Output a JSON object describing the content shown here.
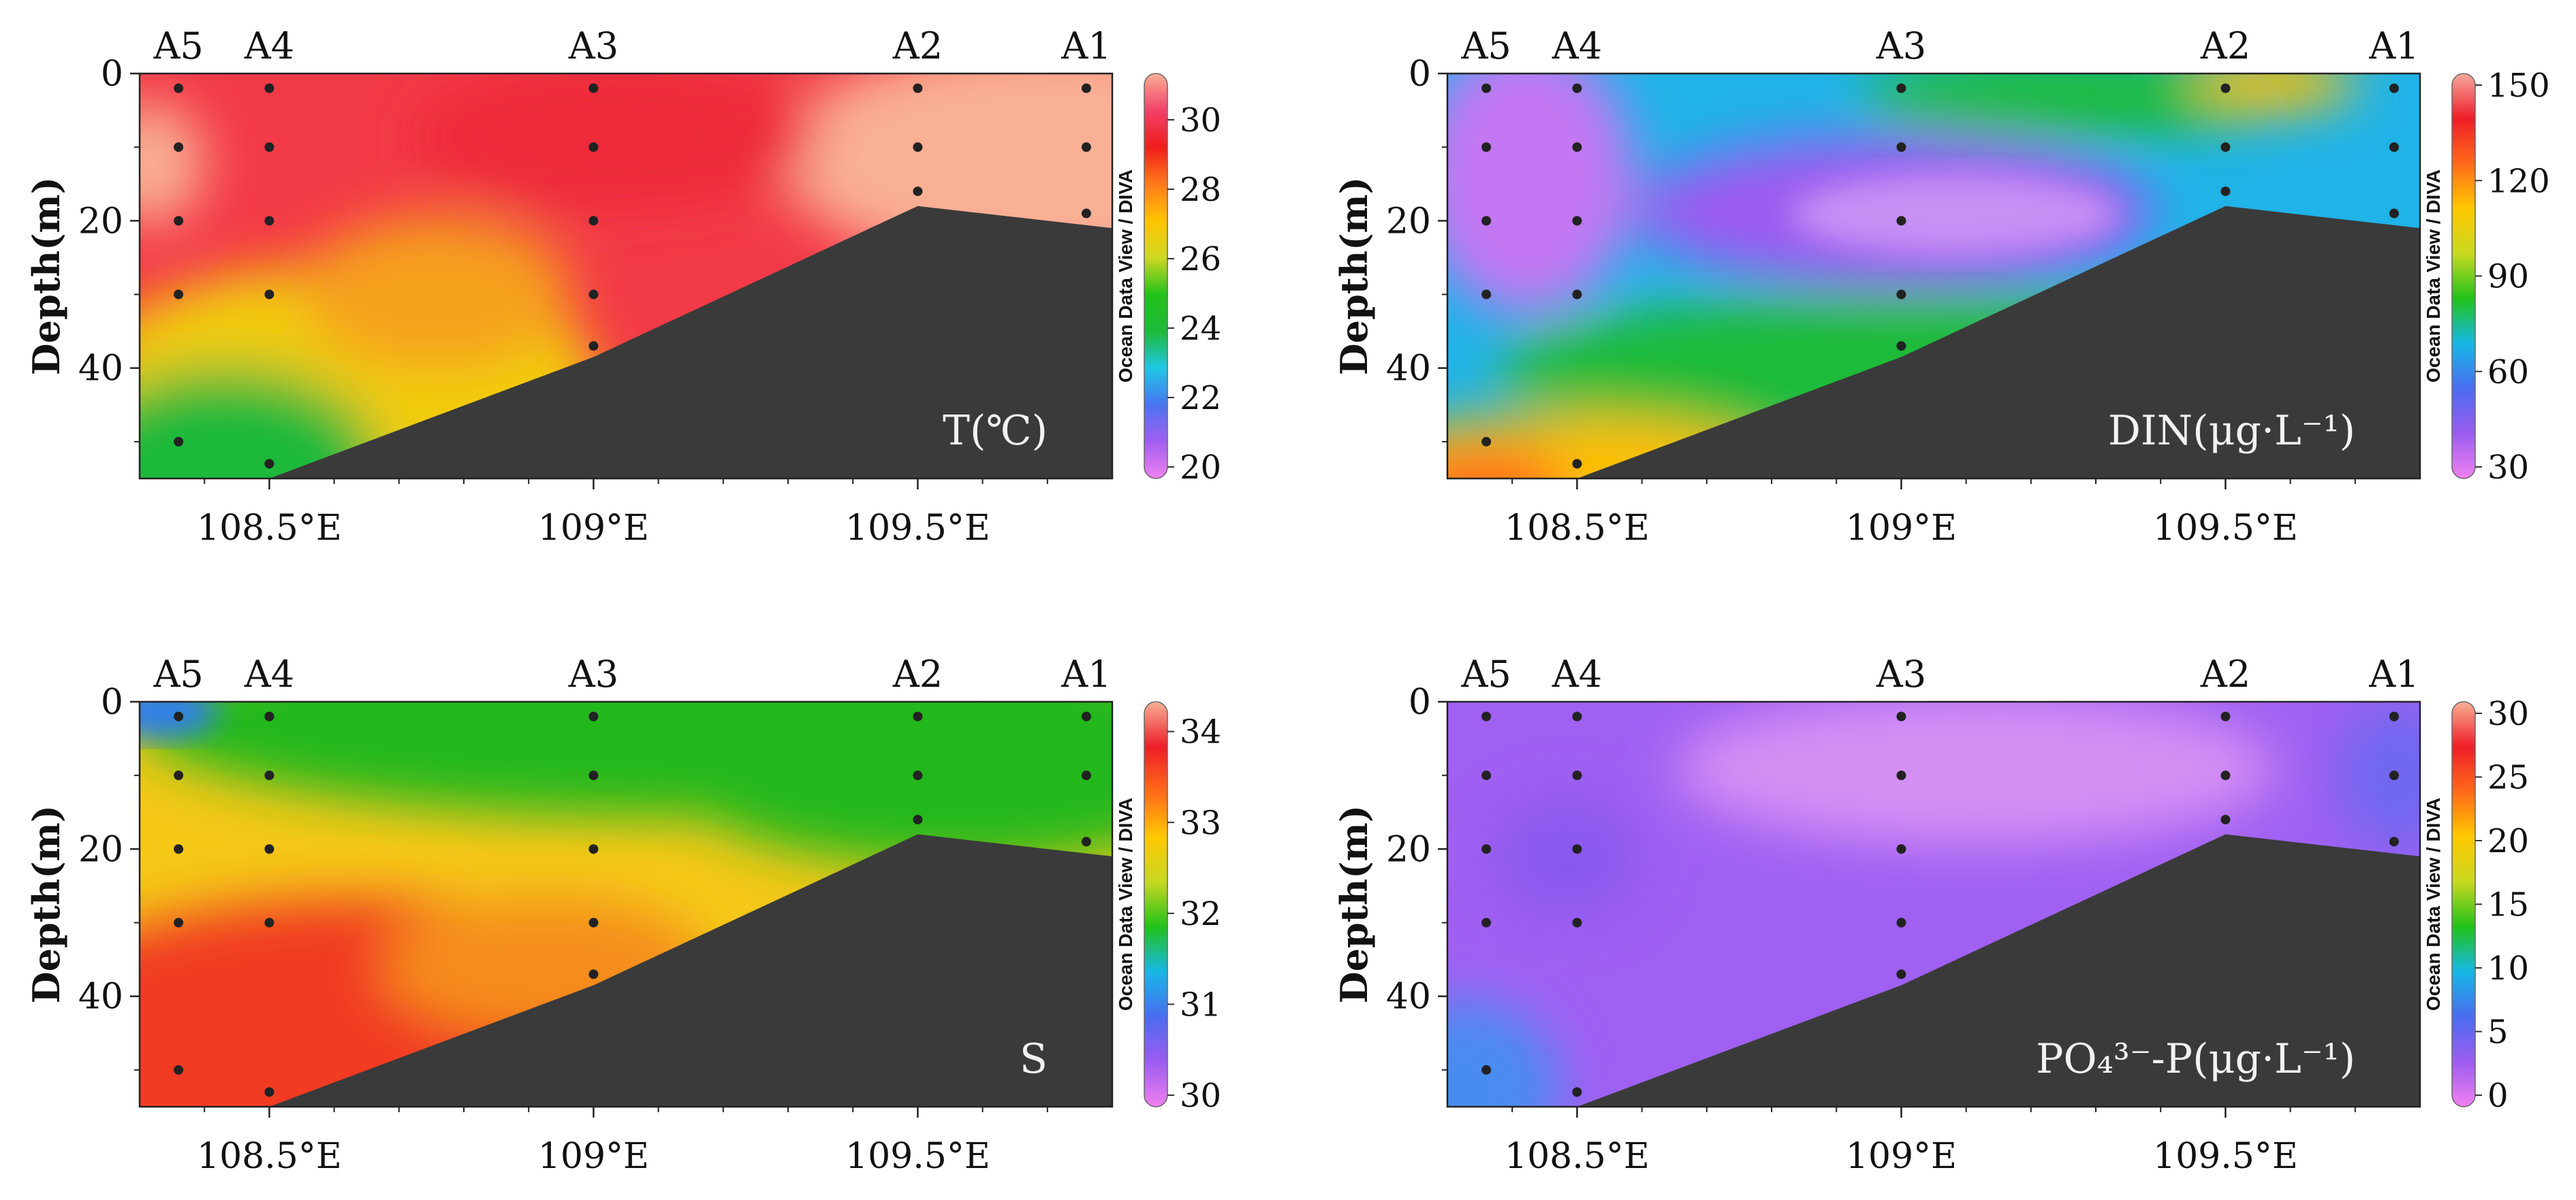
{
  "common": {
    "stations": [
      "A5",
      "A4",
      "A3",
      "A2",
      "A1"
    ],
    "station_lons": [
      108.36,
      108.5,
      109.0,
      109.5,
      109.76
    ],
    "x_ticks": [
      108.5,
      109.0,
      109.5
    ],
    "x_tick_labels": [
      "108.5°E",
      "109°E",
      "109.5°E"
    ],
    "x_range": [
      108.3,
      109.8
    ],
    "y_ticks": [
      0,
      20,
      40
    ],
    "y_tick_labels": [
      "0",
      "20",
      "40"
    ],
    "y_range": [
      0,
      55
    ],
    "ylabel": "Depth(m)",
    "colorbar_title": "Ocean Data View / DIVA",
    "sample_depths": [
      [
        2,
        10,
        20,
        30,
        50
      ],
      [
        2,
        10,
        20,
        30,
        53
      ],
      [
        2,
        10,
        20,
        30,
        37
      ],
      [
        2,
        10,
        16
      ],
      [
        2,
        10,
        19
      ]
    ],
    "seafloor": {
      "lon": [
        108.3,
        108.5,
        109.0,
        109.5,
        109.8
      ],
      "depth": [
        55,
        55,
        38.5,
        18,
        21
      ]
    },
    "seafloor_color": "#3a3a3a"
  },
  "chart_data": [
    {
      "type": "heatmap",
      "variable": "T",
      "label": "T(℃)",
      "colorbar_ticks": [
        "20",
        "22",
        "24",
        "26",
        "28",
        "30"
      ],
      "colorbar_range": [
        20,
        31
      ],
      "colorbar_colors": [
        "#ee80f0",
        "#a35ef0",
        "#4a74f0",
        "#1ec8e6",
        "#1dba38",
        "#22c21a",
        "#cfd822",
        "#ffc400",
        "#ff7a1a",
        "#ef1d1d",
        "#f3406a",
        "#f9b095"
      ],
      "sections": [
        {
          "name": "warm-surface-east",
          "value": 31,
          "color": "#f9b095"
        },
        {
          "name": "surface-layer",
          "value": 29.7,
          "color": "#f33a48"
        },
        {
          "name": "mid-depth-west",
          "value": 27.5,
          "color": "#f2cc10"
        },
        {
          "name": "bottom-west",
          "value": 25.5,
          "color": "#1eb93a"
        }
      ]
    },
    {
      "type": "heatmap",
      "variable": "DIN",
      "label": "DIN(μg·L⁻¹)",
      "colorbar_ticks": [
        "30",
        "60",
        "90",
        "120",
        "150"
      ],
      "colorbar_range": [
        30,
        150
      ],
      "colorbar_colors": [
        "#f080f0",
        "#9c5cf0",
        "#4a6cf0",
        "#16b8e6",
        "#22c21a",
        "#c8d820",
        "#ffc800",
        "#ff6a1a",
        "#ee1e28",
        "#f6a8a0"
      ],
      "sections": [
        {
          "name": "low-west-core",
          "value": 40,
          "color": "#b266f0"
        },
        {
          "name": "mid-core",
          "value": 45,
          "color": "#c477f2"
        },
        {
          "name": "surface-band",
          "value": 65,
          "color": "#1fb3e8"
        },
        {
          "name": "green-band",
          "value": 95,
          "color": "#1fbb38"
        },
        {
          "name": "bottom-high",
          "value": 130,
          "color": "#ffc000"
        }
      ]
    },
    {
      "type": "heatmap",
      "variable": "S",
      "label": "S",
      "colorbar_ticks": [
        "30",
        "31",
        "32",
        "33",
        "34"
      ],
      "colorbar_range": [
        30,
        34.2
      ],
      "colorbar_colors": [
        "#f080f0",
        "#9c5cf0",
        "#4a6cf0",
        "#16b8e6",
        "#22c21a",
        "#c8d820",
        "#ffc800",
        "#ff6a1a",
        "#ee1e28",
        "#f9b095"
      ],
      "sections": [
        {
          "name": "surface-layer",
          "value": 32.2,
          "color": "#24b81f"
        },
        {
          "name": "mid-layer",
          "value": 32.9,
          "color": "#f5c818"
        },
        {
          "name": "deep-layer",
          "value": 33.7,
          "color": "#f13a22"
        }
      ]
    },
    {
      "type": "heatmap",
      "variable": "PO4-P",
      "label": "PO₄³⁻-P(μg·L⁻¹)",
      "colorbar_ticks": [
        "0",
        "5",
        "10",
        "15",
        "20",
        "25",
        "30"
      ],
      "colorbar_range": [
        0,
        30
      ],
      "colorbar_colors": [
        "#f080f0",
        "#9c5cf0",
        "#4a6cf0",
        "#16b8e6",
        "#22c21a",
        "#c8d820",
        "#ffc800",
        "#ff6a1a",
        "#ee1e28",
        "#f9b095"
      ],
      "sections": [
        {
          "name": "main-body",
          "value": 2,
          "color": "#a060f2"
        },
        {
          "name": "light-core",
          "value": 1,
          "color": "#d590f4"
        },
        {
          "name": "east-margin",
          "value": 4,
          "color": "#6f68f0"
        },
        {
          "name": "bottom-west",
          "value": 6,
          "color": "#4a8cf0"
        }
      ]
    }
  ]
}
